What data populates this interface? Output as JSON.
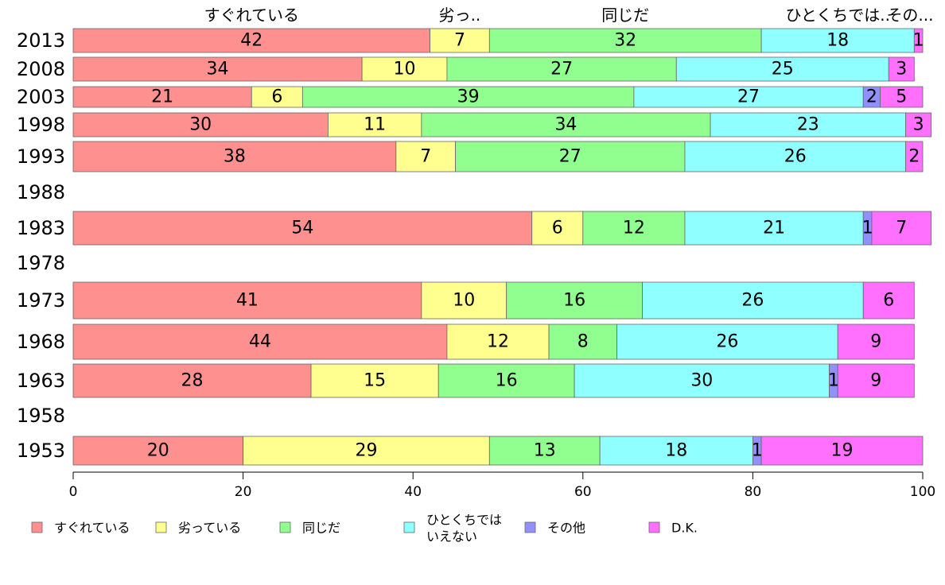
{
  "chart_data": {
    "type": "bar",
    "orientation": "horizontal",
    "stacked": true,
    "categories": [
      "2013",
      "2008",
      "2003",
      "1998",
      "1993",
      "1988",
      "1983",
      "1978",
      "1973",
      "1968",
      "1963",
      "1958",
      "1953"
    ],
    "series": [
      {
        "name": "すぐれている",
        "color": "#ff9090",
        "values": [
          42,
          34,
          21,
          30,
          38,
          null,
          54,
          null,
          41,
          44,
          28,
          null,
          20
        ]
      },
      {
        "name": "劣っている",
        "color": "#ffff90",
        "values": [
          7,
          10,
          6,
          11,
          7,
          null,
          6,
          null,
          10,
          12,
          15,
          null,
          29
        ]
      },
      {
        "name": "同じだ",
        "color": "#90ff90",
        "values": [
          32,
          27,
          39,
          34,
          27,
          null,
          12,
          null,
          16,
          8,
          16,
          null,
          13
        ]
      },
      {
        "name": "ひとくちでは いえない",
        "color": "#90ffff",
        "values": [
          18,
          25,
          27,
          23,
          26,
          null,
          21,
          null,
          26,
          26,
          30,
          null,
          18
        ]
      },
      {
        "name": "その他",
        "color": "#9090ff",
        "values": [
          0,
          0,
          2,
          0,
          0,
          null,
          1,
          null,
          0,
          0,
          1,
          null,
          1
        ]
      },
      {
        "name": "D.K.",
        "color": "#ff70ff",
        "values": [
          1,
          3,
          5,
          3,
          2,
          null,
          7,
          null,
          6,
          9,
          9,
          null,
          19
        ]
      }
    ],
    "top_labels": [
      "すぐれている",
      "劣っ..",
      "同じだ",
      "ひとくちでは..",
      "その..."
    ],
    "xlim": [
      0,
      100
    ],
    "xticks": [
      "0",
      "20",
      "40",
      "60",
      "80",
      "100"
    ],
    "legend": [
      {
        "lines": [
          "すぐれている"
        ],
        "color": "#ff9090"
      },
      {
        "lines": [
          "劣っている"
        ],
        "color": "#ffff90"
      },
      {
        "lines": [
          "同じだ"
        ],
        "color": "#90ff90"
      },
      {
        "lines": [
          "ひとくちでは",
          "いえない"
        ],
        "color": "#90ffff"
      },
      {
        "lines": [
          "その他"
        ],
        "color": "#9090ff"
      },
      {
        "lines": [
          "D.K."
        ],
        "color": "#ff70ff"
      }
    ]
  }
}
